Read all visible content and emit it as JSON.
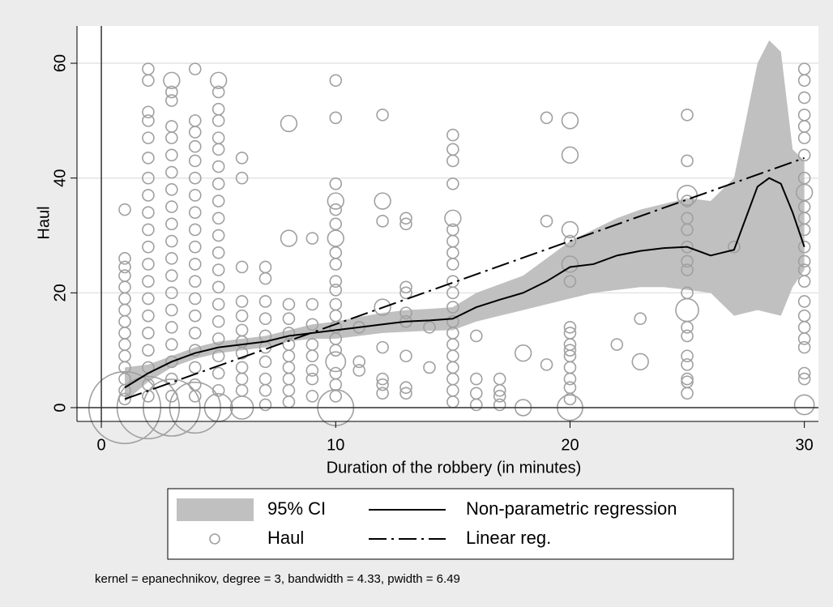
{
  "chart_data": {
    "type": "scatter",
    "xlabel": "Duration of the robbery (in minutes)",
    "ylabel": "Haul",
    "note": "kernel = epanechnikov, degree = 3, bandwidth = 4.33, pwidth = 6.49",
    "xlim": [
      -1.04,
      30.6
    ],
    "ylim": [
      -2.4,
      66.5
    ],
    "xticks": [
      0,
      10,
      20,
      30
    ],
    "yticks": [
      0,
      20,
      40,
      60
    ],
    "grid": true,
    "series": [
      {
        "name": "95% CI",
        "type": "area",
        "color": "#c0c0c0",
        "x": [
          1,
          2,
          3,
          4,
          5,
          6,
          7,
          8,
          9,
          10,
          11,
          12,
          13,
          14,
          15,
          16,
          17,
          18,
          19,
          20,
          21,
          22,
          23,
          24,
          25,
          26,
          27,
          28,
          28.5,
          29,
          29.5,
          30
        ],
        "upper": [
          7,
          7.5,
          9,
          10.5,
          11.5,
          12,
          12.5,
          13.5,
          14.5,
          15,
          15.8,
          16.5,
          17,
          17.2,
          17.5,
          20,
          21.5,
          23,
          26,
          29,
          31,
          33,
          34.5,
          35.5,
          36.5,
          36,
          40,
          60,
          64,
          62,
          45,
          43
        ],
        "lower": [
          1,
          4.5,
          7,
          8.5,
          9.5,
          10,
          10.5,
          11.5,
          12,
          12,
          12.5,
          13,
          13.2,
          13.4,
          13.5,
          15,
          16,
          17,
          18,
          19,
          20,
          20.5,
          21,
          21,
          20.5,
          20,
          16,
          17,
          16.5,
          16,
          21,
          24
        ]
      },
      {
        "name": "Non-parametric regression",
        "type": "line",
        "color": "#000000",
        "x": [
          1,
          2,
          3,
          4,
          5,
          6,
          7,
          8,
          9,
          10,
          11,
          12,
          13,
          14,
          15,
          16,
          17,
          18,
          19,
          20,
          21,
          22,
          23,
          24,
          25,
          26,
          27,
          28,
          28.5,
          29,
          29.5,
          30
        ],
        "values": [
          3.5,
          6,
          8,
          9.5,
          10.5,
          11,
          11.5,
          12.5,
          13,
          13.5,
          14,
          14.5,
          15,
          15.2,
          15.5,
          17.5,
          18.8,
          20,
          22,
          24.5,
          25,
          26.5,
          27.3,
          27.8,
          28,
          26.5,
          27.5,
          38.5,
          40,
          39,
          34,
          28
        ]
      },
      {
        "name": "Haul",
        "type": "scatter",
        "color": "#a0a0a0",
        "x": [
          1,
          1,
          1,
          1,
          1,
          1,
          1,
          1,
          1,
          1,
          1,
          1,
          1,
          1,
          1,
          1,
          2,
          2,
          2,
          2,
          2,
          2,
          2,
          2,
          2,
          2,
          2,
          2,
          2,
          2,
          2,
          2,
          2,
          2,
          2,
          2,
          2,
          3,
          3,
          3,
          3,
          3,
          3,
          3,
          3,
          3,
          3,
          3,
          3,
          3,
          3,
          3,
          3,
          3,
          3,
          3,
          3,
          3,
          4,
          4,
          4,
          4,
          4,
          4,
          4,
          4,
          4,
          4,
          4,
          4,
          4,
          4,
          4,
          4,
          4,
          4,
          4,
          4,
          5,
          5,
          5,
          5,
          5,
          5,
          5,
          5,
          5,
          5,
          5,
          5,
          5,
          5,
          5,
          5,
          5,
          5,
          5,
          5,
          5,
          6,
          6,
          6,
          6,
          6,
          6,
          6,
          6,
          6,
          6,
          6,
          6,
          7,
          7,
          7,
          7,
          7,
          7,
          7,
          7,
          7,
          7,
          8,
          8,
          8,
          8,
          8,
          8,
          8,
          8,
          8,
          8,
          8,
          9,
          9,
          9,
          9,
          9,
          9,
          9,
          9,
          10,
          10,
          10,
          10,
          10,
          10,
          10,
          10,
          10,
          10,
          10,
          10,
          10,
          10,
          10,
          10,
          10,
          10,
          10,
          10,
          10,
          11,
          11,
          11,
          12,
          12,
          12,
          12,
          12,
          12,
          12,
          12,
          13,
          13,
          13,
          13,
          13,
          13,
          13,
          13,
          13,
          14,
          14,
          15,
          15,
          15,
          15,
          15,
          15,
          15,
          15,
          15,
          15,
          15,
          15,
          15,
          15,
          15,
          15,
          15,
          15,
          15,
          15,
          16,
          16,
          16,
          16,
          17,
          17,
          17,
          17,
          18,
          18,
          19,
          19,
          19,
          20,
          20,
          20,
          20,
          20,
          20,
          20,
          20,
          20,
          20,
          20,
          20,
          20,
          20,
          20,
          20,
          22,
          23,
          23,
          25,
          25,
          25,
          25,
          25,
          25,
          25,
          25,
          25,
          25,
          25,
          25,
          25,
          25,
          25,
          25,
          25,
          25,
          27,
          30,
          30,
          30,
          30,
          30,
          30,
          30,
          30,
          30,
          30,
          30,
          30,
          30,
          30,
          30,
          30,
          30,
          30,
          30,
          30,
          30,
          30,
          30,
          30
        ],
        "values": [
          34.5,
          26,
          24.5,
          23,
          21,
          19,
          17,
          15,
          13,
          11,
          9,
          7,
          5,
          3,
          1.5,
          0,
          59,
          57,
          51.5,
          50,
          47,
          43.5,
          40,
          37,
          34,
          31,
          28,
          25,
          22,
          19,
          16,
          13,
          10,
          7,
          4,
          2,
          0,
          57,
          55,
          53.5,
          49,
          47,
          44,
          41,
          38,
          35,
          32,
          29,
          26,
          23,
          20,
          17,
          14,
          11,
          8,
          5,
          2,
          0,
          59,
          50,
          48,
          45.5,
          43,
          40,
          37,
          34,
          31,
          28,
          25,
          22,
          19,
          16,
          13,
          10,
          7,
          4,
          2,
          0,
          57,
          55,
          52,
          50,
          47,
          45,
          42,
          39,
          36,
          33,
          30,
          27,
          24,
          21,
          18,
          15,
          12,
          9,
          6,
          3,
          0,
          43.5,
          40,
          24.5,
          18.5,
          16,
          13.5,
          11.5,
          9.5,
          7,
          5,
          3,
          0,
          24.5,
          22.5,
          18.5,
          15.5,
          12.5,
          10.5,
          8,
          5,
          3,
          0.5,
          49.5,
          29.5,
          18,
          15.5,
          13,
          11,
          9,
          7,
          5,
          3,
          1,
          29.5,
          18,
          14.5,
          11,
          9,
          6.5,
          5,
          2,
          57,
          50.5,
          39,
          36,
          34.5,
          32,
          29.5,
          27,
          25,
          22,
          20.5,
          18,
          16,
          14,
          12,
          10,
          8,
          6,
          4,
          2,
          0,
          14,
          8,
          6.5,
          51,
          36,
          32.5,
          17.5,
          10.5,
          5,
          4,
          2.5,
          33,
          32,
          21,
          20,
          16.5,
          15,
          9,
          3.5,
          2.5,
          14,
          7,
          47.5,
          45,
          43,
          39,
          33,
          31,
          29,
          27,
          25,
          22,
          20,
          17.5,
          15,
          13,
          11,
          9,
          7,
          5,
          3,
          1,
          12.5,
          5,
          2.5,
          0.5,
          5,
          3,
          2,
          0.5,
          9.5,
          0,
          50.5,
          32.5,
          7.5,
          50,
          44,
          31,
          29,
          25,
          22,
          14,
          13,
          11,
          10,
          9,
          7,
          5,
          3.5,
          1.5,
          0,
          11,
          15.5,
          8,
          51,
          43,
          37,
          36,
          33,
          31,
          28,
          25.5,
          24,
          20,
          17,
          14,
          12.5,
          9,
          7.5,
          5,
          4.5,
          2.5,
          28,
          59,
          57,
          54,
          51,
          49,
          47,
          44,
          40,
          37.5,
          35,
          33,
          31,
          28,
          25.5,
          24,
          22,
          18.5,
          16,
          14,
          12,
          10.5,
          6,
          5,
          0.5
        ],
        "sizes": [
          1,
          1,
          1,
          1,
          1,
          1,
          1,
          1,
          1,
          1,
          1,
          1,
          1,
          1,
          1,
          40,
          1,
          1,
          1,
          1,
          1,
          1,
          1,
          1,
          1,
          1,
          1,
          1,
          1,
          1,
          1,
          1,
          1,
          1,
          1,
          1,
          30,
          2,
          1,
          1,
          1,
          1,
          1,
          1,
          1,
          1,
          1,
          1,
          1,
          1,
          1,
          1,
          1,
          1,
          1,
          1,
          1,
          25,
          1,
          1,
          1,
          1,
          1,
          1,
          1,
          1,
          1,
          1,
          1,
          1,
          1,
          1,
          1,
          1,
          1,
          1,
          1,
          20,
          2,
          1,
          1,
          1,
          1,
          1,
          1,
          1,
          1,
          1,
          1,
          1,
          1,
          1,
          1,
          1,
          1,
          1,
          1,
          1,
          6,
          1,
          1,
          1,
          1,
          1,
          1,
          1,
          1,
          1,
          1,
          1,
          4,
          1,
          1,
          1,
          1,
          1,
          1,
          1,
          1,
          1,
          1,
          2,
          2,
          1,
          1,
          1,
          1,
          1,
          1,
          1,
          1,
          1,
          1,
          1,
          1,
          1,
          1,
          1,
          1,
          1,
          1,
          1,
          1,
          2,
          1,
          1,
          2,
          1,
          1,
          1,
          1,
          1,
          1,
          1,
          1,
          1,
          3,
          1,
          1,
          1,
          10,
          1,
          1,
          1,
          1,
          2,
          1,
          2,
          1,
          1,
          1,
          1,
          1,
          1,
          1,
          1,
          1,
          1,
          1,
          1,
          1,
          1,
          1,
          1,
          1,
          1,
          1,
          2,
          1,
          1,
          1,
          1,
          1,
          1,
          1,
          1,
          1,
          1,
          1,
          1,
          1,
          1,
          1,
          1,
          1,
          1,
          1,
          1,
          1,
          1,
          1,
          2,
          2,
          1,
          1,
          1,
          2,
          2,
          2,
          1,
          2,
          1,
          1,
          1,
          1,
          1,
          1,
          1,
          1,
          1,
          1,
          5,
          1,
          1,
          2,
          1,
          1,
          3,
          1,
          1,
          1,
          1,
          1,
          1,
          1,
          4,
          1,
          1,
          1,
          1,
          1,
          1,
          1,
          1,
          1,
          1,
          1,
          1,
          1,
          1,
          1,
          1,
          2,
          1,
          1,
          1,
          1,
          1,
          1,
          1,
          1,
          1,
          1,
          1,
          1,
          1,
          1,
          3
        ]
      },
      {
        "name": "Linear reg.",
        "type": "line",
        "color": "#000000",
        "line_style": "dashdot",
        "x": [
          1,
          30
        ],
        "values": [
          1.5,
          43.5
        ]
      }
    ]
  }
}
